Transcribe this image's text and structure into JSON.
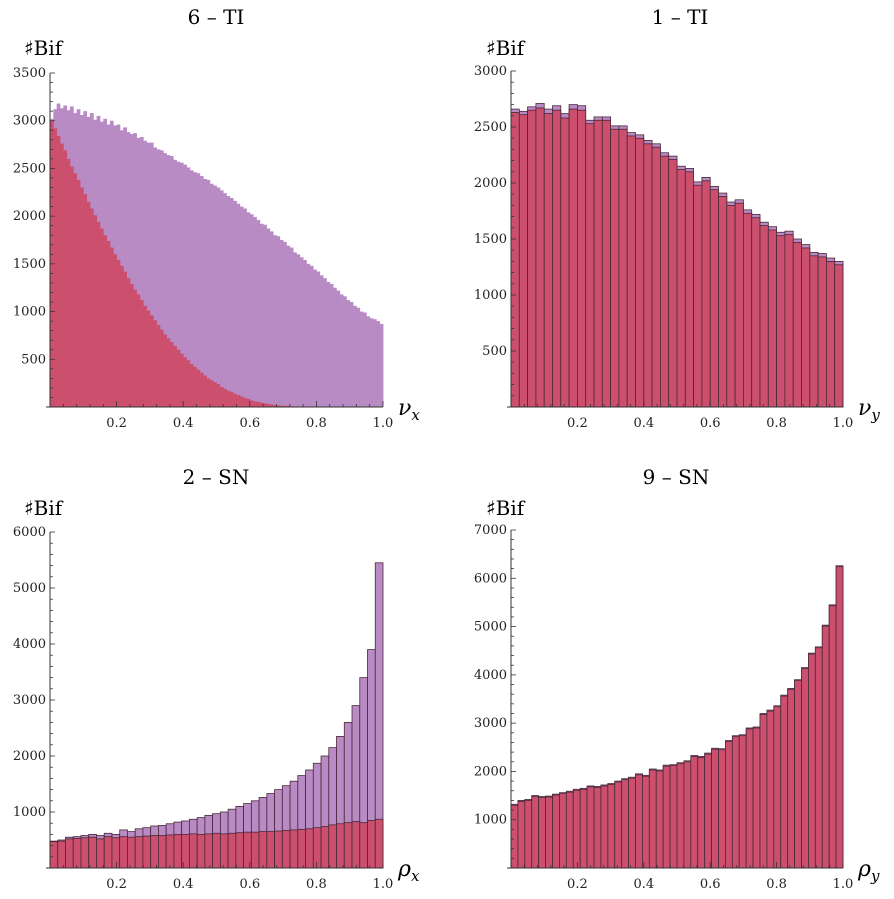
{
  "colors": {
    "purple": "#b88bc4",
    "red": "#cc4f6e",
    "edge": "#4a2838",
    "axis": "#333333"
  },
  "chart_data": [
    {
      "type": "bar",
      "title": "6 – TI",
      "ylabel": "♯Bif",
      "xlabel": "ν",
      "xsub": "x",
      "xlim": [
        0,
        1
      ],
      "ylim": [
        0,
        3500
      ],
      "xticks": [
        "0.2",
        "0.4",
        "0.6",
        "0.8",
        "1.0"
      ],
      "yticks": [
        "500",
        "1000",
        "1500",
        "2000",
        "2500",
        "3000",
        "3500"
      ],
      "outlined": false,
      "series": [
        {
          "name": "purple",
          "values": [
            3020,
            3120,
            3180,
            3130,
            3160,
            3110,
            3150,
            3080,
            3120,
            3060,
            3100,
            3040,
            3080,
            3010,
            3050,
            2990,
            3020,
            2960,
            3000,
            2950,
            2960,
            2900,
            2930,
            2880,
            2860,
            2870,
            2820,
            2830,
            2790,
            2770,
            2770,
            2720,
            2700,
            2690,
            2660,
            2640,
            2630,
            2590,
            2570,
            2560,
            2540,
            2510,
            2480,
            2460,
            2450,
            2420,
            2390,
            2380,
            2340,
            2320,
            2300,
            2270,
            2240,
            2210,
            2190,
            2160,
            2130,
            2100,
            2080,
            2040,
            2020,
            1990,
            1960,
            1920,
            1910,
            1870,
            1840,
            1800,
            1790,
            1750,
            1730,
            1690,
            1670,
            1620,
            1600,
            1570,
            1540,
            1500,
            1480,
            1440,
            1420,
            1380,
            1350,
            1310,
            1290,
            1250,
            1220,
            1180,
            1160,
            1120,
            1100,
            1060,
            1040,
            1000,
            990,
            950,
            930,
            920,
            900,
            870
          ]
        },
        {
          "name": "red",
          "values": [
            3000,
            2920,
            2840,
            2760,
            2690,
            2600,
            2520,
            2450,
            2380,
            2300,
            2230,
            2150,
            2080,
            2010,
            1940,
            1870,
            1800,
            1740,
            1670,
            1600,
            1540,
            1480,
            1420,
            1350,
            1290,
            1230,
            1180,
            1120,
            1060,
            1010,
            960,
            910,
            860,
            810,
            760,
            720,
            680,
            640,
            600,
            560,
            520,
            490,
            450,
            420,
            390,
            360,
            330,
            300,
            280,
            260,
            240,
            210,
            190,
            170,
            160,
            140,
            125,
            110,
            95,
            85,
            70,
            60,
            52,
            45,
            38,
            32,
            26,
            21,
            17,
            14,
            12,
            10,
            8,
            6,
            5,
            4,
            3,
            3,
            2,
            2,
            2,
            1,
            1,
            1,
            1,
            0,
            0,
            0,
            0,
            0,
            0,
            0,
            0,
            0,
            0,
            0,
            0,
            0,
            0,
            0
          ]
        }
      ]
    },
    {
      "type": "bar",
      "title": "1 – TI",
      "ylabel": "♯Bif",
      "xlabel": "ν",
      "xsub": "y",
      "xlim": [
        0,
        1
      ],
      "ylim": [
        0,
        3000
      ],
      "xticks": [
        "0.2",
        "0.4",
        "0.6",
        "0.8",
        "1.0"
      ],
      "yticks": [
        "500",
        "1000",
        "1500",
        "2000",
        "2500",
        "3000"
      ],
      "outlined": true,
      "series": [
        {
          "name": "purple",
          "values": [
            2660,
            2640,
            2680,
            2710,
            2660,
            2690,
            2620,
            2700,
            2690,
            2560,
            2590,
            2590,
            2510,
            2510,
            2450,
            2430,
            2380,
            2350,
            2270,
            2240,
            2150,
            2130,
            2010,
            2050,
            1970,
            1910,
            1830,
            1850,
            1760,
            1720,
            1650,
            1610,
            1560,
            1570,
            1500,
            1450,
            1380,
            1370,
            1330,
            1300
          ]
        },
        {
          "name": "red",
          "values": [
            2630,
            2610,
            2650,
            2670,
            2620,
            2650,
            2580,
            2660,
            2650,
            2530,
            2560,
            2560,
            2480,
            2480,
            2420,
            2400,
            2350,
            2320,
            2240,
            2210,
            2120,
            2100,
            1980,
            2020,
            1940,
            1880,
            1800,
            1820,
            1730,
            1690,
            1620,
            1580,
            1530,
            1540,
            1470,
            1420,
            1350,
            1340,
            1300,
            1270
          ]
        }
      ]
    },
    {
      "type": "bar",
      "title": "2 – SN",
      "ylabel": "♯Bif",
      "xlabel": "ρ",
      "xsub": "x",
      "xlim": [
        0,
        1
      ],
      "ylim": [
        0,
        6000
      ],
      "xticks": [
        "0.2",
        "0.4",
        "0.6",
        "0.8",
        "1.0"
      ],
      "yticks": [
        "1000",
        "2000",
        "3000",
        "4000",
        "5000",
        "6000"
      ],
      "outlined": true,
      "series": [
        {
          "name": "purple",
          "values": [
            480,
            500,
            550,
            560,
            580,
            600,
            580,
            620,
            600,
            680,
            650,
            700,
            720,
            750,
            760,
            790,
            820,
            840,
            870,
            900,
            940,
            970,
            1000,
            1050,
            1100,
            1150,
            1200,
            1260,
            1330,
            1400,
            1470,
            1550,
            1650,
            1750,
            1870,
            2000,
            2150,
            2350,
            2600,
            2900,
            3400,
            3900,
            5450
          ]
        },
        {
          "name": "red",
          "values": [
            470,
            480,
            520,
            530,
            540,
            550,
            520,
            560,
            540,
            560,
            550,
            560,
            570,
            580,
            580,
            590,
            600,
            600,
            610,
            600,
            610,
            620,
            610,
            620,
            630,
            640,
            640,
            650,
            650,
            660,
            670,
            680,
            690,
            700,
            720,
            740,
            770,
            790,
            810,
            830,
            810,
            850,
            870
          ]
        }
      ]
    },
    {
      "type": "bar",
      "title": "9 – SN",
      "ylabel": "♯Bif",
      "xlabel": "ρ",
      "xsub": "y",
      "xlim": [
        0,
        1
      ],
      "ylim": [
        0,
        7000
      ],
      "xticks": [
        "0.2",
        "0.4",
        "0.6",
        "0.8",
        "1.0"
      ],
      "yticks": [
        "1000",
        "2000",
        "3000",
        "4000",
        "5000",
        "6000",
        "7000"
      ],
      "outlined": true,
      "series": [
        {
          "name": "purple",
          "values": [
            1320,
            1400,
            1420,
            1500,
            1480,
            1490,
            1530,
            1560,
            1590,
            1630,
            1650,
            1700,
            1690,
            1720,
            1750,
            1800,
            1850,
            1880,
            1950,
            1920,
            2050,
            2030,
            2130,
            2140,
            2180,
            2220,
            2330,
            2310,
            2380,
            2480,
            2470,
            2640,
            2740,
            2760,
            2900,
            2920,
            3200,
            3270,
            3360,
            3580,
            3720,
            3900,
            4150,
            4450,
            4580,
            5030,
            5450,
            6260
          ]
        },
        {
          "name": "red",
          "values": [
            1300,
            1380,
            1400,
            1480,
            1460,
            1470,
            1510,
            1540,
            1570,
            1610,
            1630,
            1680,
            1670,
            1700,
            1730,
            1780,
            1830,
            1860,
            1930,
            1900,
            2030,
            2010,
            2110,
            2120,
            2160,
            2200,
            2310,
            2290,
            2360,
            2460,
            2450,
            2620,
            2720,
            2740,
            2880,
            2900,
            3180,
            3250,
            3340,
            3560,
            3700,
            3880,
            4130,
            4430,
            4560,
            5010,
            5430,
            6240
          ]
        }
      ]
    }
  ]
}
